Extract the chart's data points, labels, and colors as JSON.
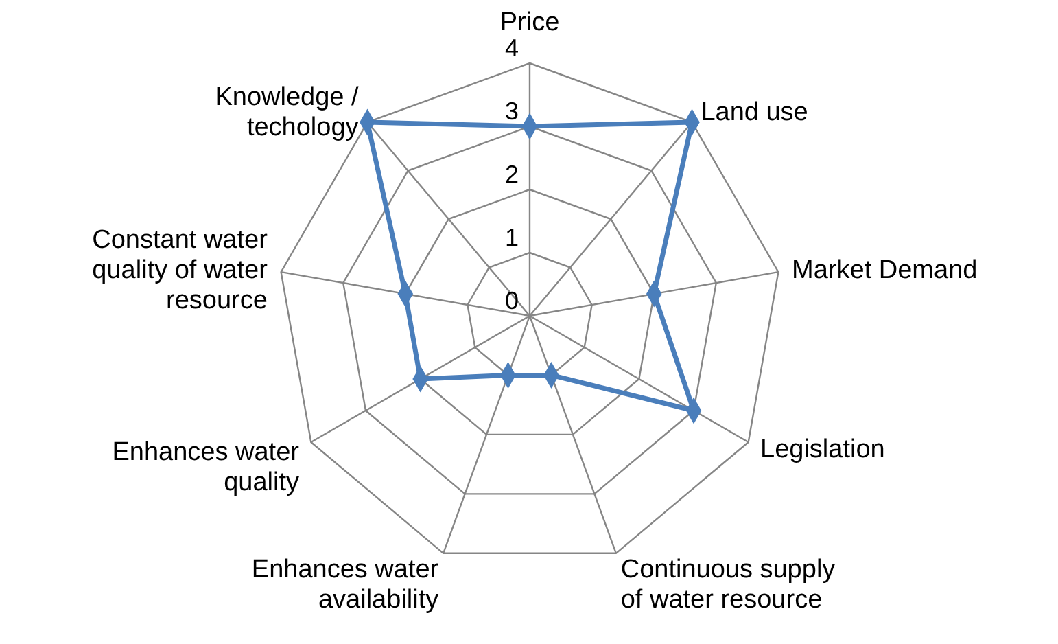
{
  "chart_data": {
    "type": "radar",
    "categories": [
      "Price",
      "Land use",
      "Market Demand",
      "Legislation",
      "Continuous supply of water resource",
      "Enhances water availability",
      "Enhances water quality",
      "Constant water quality of water resource",
      "Knowledge / techology"
    ],
    "series": [
      {
        "color": "#4a7ebb",
        "values": [
          3,
          4,
          2,
          3,
          1,
          1,
          2,
          2,
          4
        ]
      }
    ],
    "ylim": [
      0,
      4
    ],
    "yticks": [
      0,
      1,
      2,
      3,
      4
    ],
    "grid": true,
    "marker": "diamond",
    "line_style": "solid"
  }
}
